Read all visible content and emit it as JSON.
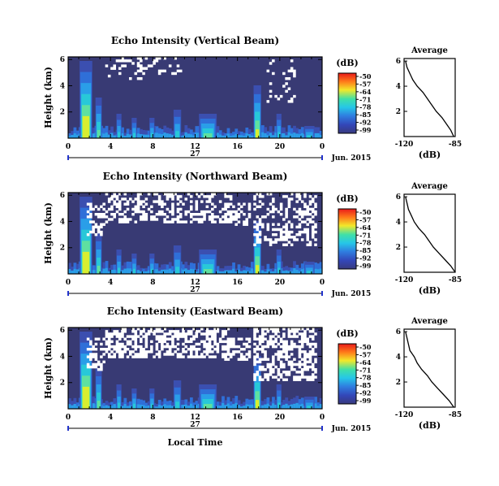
{
  "chart_data": {
    "type": "heatmap",
    "date_label": "Jun. 2015",
    "xlabel": "Local Time",
    "ylabel": "Height (km)",
    "day_label": "27",
    "x_ticks": [
      "0",
      "4",
      "8",
      "12",
      "16",
      "20",
      "0"
    ],
    "y_ticks": [
      "2",
      "4",
      "6"
    ],
    "colorbar": {
      "unit_label": "(dB)",
      "levels": [
        -50,
        -57,
        -64,
        -71,
        -78,
        -85,
        -92,
        -99
      ],
      "level_labels": [
        "-50",
        "-57",
        "-64",
        "-71",
        "-78",
        "-85",
        "-92",
        "-99"
      ],
      "colors": [
        "#f0e02a",
        "#ff8c1a",
        "#ff3a1a",
        "#dd1c1c",
        "#26d7c8",
        "#27a8e8",
        "#2f5ed8",
        "#3a3f9a",
        "#383a6e"
      ]
    },
    "panels": [
      {
        "title": "Echo Intensity (Vertical Beam)",
        "average": {
          "title": "Average",
          "xlabel": "(dB)",
          "x_ticks": [
            "-120",
            "-85"
          ],
          "y_ticks": [
            "2",
            "4",
            "6"
          ],
          "profile": [
            [
              -86,
              0.0
            ],
            [
              -88,
              0.5
            ],
            [
              -91,
              1.0
            ],
            [
              -94,
              1.5
            ],
            [
              -98,
              2.0
            ],
            [
              -101,
              2.5
            ],
            [
              -104,
              3.0
            ],
            [
              -107,
              3.5
            ],
            [
              -111,
              4.0
            ],
            [
              -114,
              4.5
            ],
            [
              -116,
              5.0
            ],
            [
              -118,
              5.5
            ],
            [
              -119,
              6.0
            ]
          ]
        }
      },
      {
        "title": "Echo Intensity (Northward Beam)",
        "average": {
          "title": "Average",
          "xlabel": "(dB)",
          "x_ticks": [
            "-120",
            "-85"
          ],
          "y_ticks": [
            "2",
            "4",
            "6"
          ],
          "profile": [
            [
              -85,
              0.0
            ],
            [
              -88,
              0.5
            ],
            [
              -92,
              1.0
            ],
            [
              -96,
              1.5
            ],
            [
              -100,
              2.0
            ],
            [
              -103,
              2.5
            ],
            [
              -106,
              3.0
            ],
            [
              -110,
              3.5
            ],
            [
              -113,
              4.0
            ],
            [
              -115,
              4.5
            ],
            [
              -117,
              5.0
            ],
            [
              -118,
              5.5
            ],
            [
              -119,
              6.0
            ]
          ]
        }
      },
      {
        "title": "Echo Intensity (Eastward Beam)",
        "average": {
          "title": "Average",
          "xlabel": "(dB)",
          "x_ticks": [
            "-120",
            "-85"
          ],
          "y_ticks": [
            "2",
            "4",
            "6"
          ],
          "profile": [
            [
              -86,
              0.0
            ],
            [
              -89,
              0.5
            ],
            [
              -93,
              1.0
            ],
            [
              -97,
              1.5
            ],
            [
              -101,
              2.0
            ],
            [
              -104,
              2.5
            ],
            [
              -108,
              3.0
            ],
            [
              -111,
              3.5
            ],
            [
              -113,
              4.0
            ],
            [
              -116,
              4.5
            ],
            [
              -117,
              5.0
            ],
            [
              -118,
              5.5
            ],
            [
              -119,
              6.0
            ]
          ]
        }
      }
    ]
  }
}
